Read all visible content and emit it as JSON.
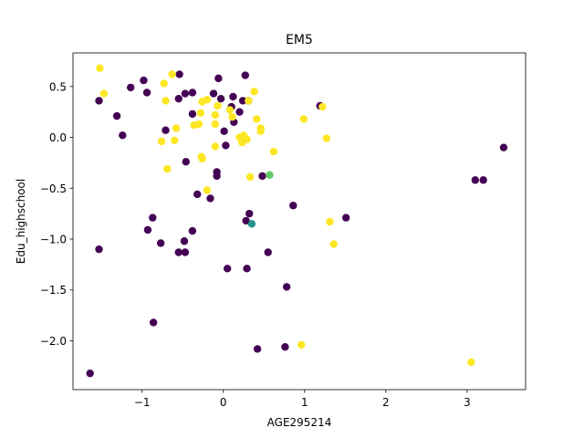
{
  "chart_data": {
    "type": "scatter",
    "title": "EM5",
    "xlabel": "AGE295214",
    "ylabel": "Edu_highschool",
    "xlim": [
      -1.85,
      3.72
    ],
    "ylim": [
      -2.48,
      0.83
    ],
    "xticks": [
      -1,
      0,
      1,
      2,
      3
    ],
    "xtick_labels": [
      "−1",
      "0",
      "1",
      "2",
      "3"
    ],
    "yticks": [
      0.5,
      0.0,
      -0.5,
      -1.0,
      -1.5,
      -2.0
    ],
    "ytick_labels": [
      "0.5",
      "0.0",
      "−0.5",
      "−1.0",
      "−1.5",
      "−2.0"
    ],
    "grid": false,
    "legend": "none",
    "series": [
      {
        "color": "#440154",
        "points": [
          [
            -1.53,
            0.36
          ],
          [
            -1.14,
            0.49
          ],
          [
            -0.98,
            0.56
          ],
          [
            -0.94,
            0.44
          ],
          [
            -1.31,
            0.21
          ],
          [
            -1.24,
            0.02
          ],
          [
            -0.54,
            0.62
          ],
          [
            -0.47,
            0.43
          ],
          [
            -0.55,
            0.38
          ],
          [
            -0.38,
            0.44
          ],
          [
            -0.38,
            0.23
          ],
          [
            -0.12,
            0.43
          ],
          [
            -0.06,
            0.58
          ],
          [
            -0.03,
            0.38
          ],
          [
            0.12,
            0.4
          ],
          [
            0.27,
            0.61
          ],
          [
            0.24,
            0.36
          ],
          [
            0.31,
            0.36
          ],
          [
            0.1,
            0.3
          ],
          [
            0.2,
            0.25
          ],
          [
            0.13,
            0.15
          ],
          [
            0.01,
            0.06
          ],
          [
            0.03,
            -0.08
          ],
          [
            -0.71,
            0.07
          ],
          [
            -0.46,
            -0.24
          ],
          [
            -0.08,
            -0.34
          ],
          [
            -0.08,
            -0.38
          ],
          [
            0.48,
            -0.38
          ],
          [
            -0.32,
            -0.56
          ],
          [
            -0.16,
            -0.6
          ],
          [
            -0.87,
            -0.79
          ],
          [
            -0.93,
            -0.91
          ],
          [
            -0.38,
            -0.92
          ],
          [
            -0.77,
            -1.04
          ],
          [
            -0.48,
            -1.02
          ],
          [
            -1.53,
            -1.1
          ],
          [
            -0.55,
            -1.13
          ],
          [
            -0.47,
            -1.13
          ],
          [
            0.28,
            -0.82
          ],
          [
            0.32,
            -0.75
          ],
          [
            0.86,
            -0.67
          ],
          [
            1.51,
            -0.79
          ],
          [
            0.55,
            -1.13
          ],
          [
            0.05,
            -1.29
          ],
          [
            0.29,
            -1.29
          ],
          [
            0.78,
            -1.47
          ],
          [
            -0.86,
            -1.82
          ],
          [
            0.42,
            -2.08
          ],
          [
            0.76,
            -2.06
          ],
          [
            -1.64,
            -2.32
          ],
          [
            1.19,
            0.31
          ],
          [
            3.1,
            -0.42
          ],
          [
            3.2,
            -0.42
          ],
          [
            3.45,
            -0.1
          ]
        ]
      },
      {
        "color": "#fde725",
        "points": [
          [
            -1.52,
            0.68
          ],
          [
            -1.47,
            0.43
          ],
          [
            -0.63,
            0.62
          ],
          [
            -0.73,
            0.53
          ],
          [
            -0.71,
            0.36
          ],
          [
            -0.2,
            0.37
          ],
          [
            -0.26,
            0.35
          ],
          [
            -0.28,
            0.24
          ],
          [
            -0.1,
            0.22
          ],
          [
            -0.07,
            0.31
          ],
          [
            0.08,
            0.27
          ],
          [
            0.11,
            0.2
          ],
          [
            0.38,
            0.45
          ],
          [
            0.31,
            0.36
          ],
          [
            0.41,
            0.18
          ],
          [
            0.46,
            0.09
          ],
          [
            0.46,
            0.06
          ],
          [
            0.62,
            -0.14
          ],
          [
            -0.58,
            0.09
          ],
          [
            -0.36,
            0.12
          ],
          [
            -0.3,
            0.13
          ],
          [
            -0.1,
            0.13
          ],
          [
            0.2,
            0.0
          ],
          [
            0.25,
            0.02
          ],
          [
            0.23,
            -0.05
          ],
          [
            0.29,
            -0.02
          ],
          [
            -0.76,
            -0.04
          ],
          [
            -0.6,
            -0.03
          ],
          [
            -0.1,
            -0.09
          ],
          [
            -0.27,
            -0.19
          ],
          [
            -0.26,
            -0.21
          ],
          [
            -0.69,
            -0.31
          ],
          [
            -0.2,
            -0.52
          ],
          [
            0.33,
            -0.39
          ],
          [
            0.99,
            0.18
          ],
          [
            1.22,
            0.3
          ],
          [
            1.27,
            -0.01
          ],
          [
            1.31,
            -0.83
          ],
          [
            1.36,
            -1.05
          ],
          [
            0.96,
            -2.04
          ],
          [
            3.05,
            -2.21
          ]
        ]
      },
      {
        "color": "#5ec962",
        "points": [
          [
            0.57,
            -0.37
          ]
        ]
      },
      {
        "color": "#21918c",
        "points": [
          [
            0.35,
            -0.85
          ]
        ]
      }
    ]
  }
}
